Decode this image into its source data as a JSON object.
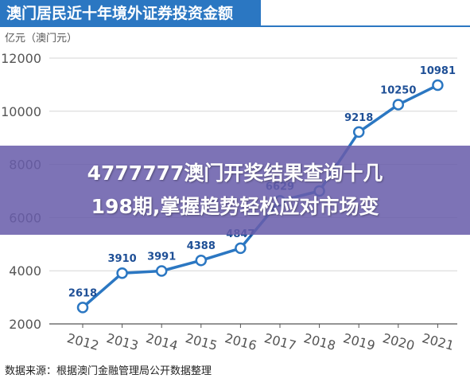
{
  "header": {
    "title": "澳门居民近十年境外证券投资金额"
  },
  "chart_data": {
    "type": "line",
    "title": "澳门居民近十年境外证券投资金额",
    "ylabel": "亿元（澳门元）",
    "xlabel": "",
    "x": [
      "2012",
      "2013",
      "2014",
      "2015",
      "2016",
      "2017",
      "2018",
      "2019",
      "2020",
      "2021"
    ],
    "series": [
      {
        "values": [
          2618,
          3910,
          3991,
          4388,
          4847,
          6629,
          7000,
          9218,
          10250,
          10981
        ]
      }
    ],
    "data_labels": [
      "2618",
      "3910",
      "3991",
      "4388",
      "4847",
      "6629",
      "",
      "9218",
      "10250",
      "10981"
    ],
    "yticks": [
      "2000",
      "4000",
      "6000",
      "8000",
      "10000",
      "12000"
    ],
    "ylim": [
      2000,
      12000
    ],
    "grid": "horizontal",
    "colors": {
      "line": "#2b77c2",
      "marker_fill": "#ffffff",
      "data_label": "#1e4f96",
      "grid": "#d6d6d6",
      "axis_text": "#555555"
    }
  },
  "footer": {
    "source": "数据来源：根据澳门金融管理局公开数据整理"
  },
  "overlay": {
    "line1": "4777777澳门开奖结果查询十几",
    "line2": "198期,掌握趋势轻松应对市场变"
  }
}
